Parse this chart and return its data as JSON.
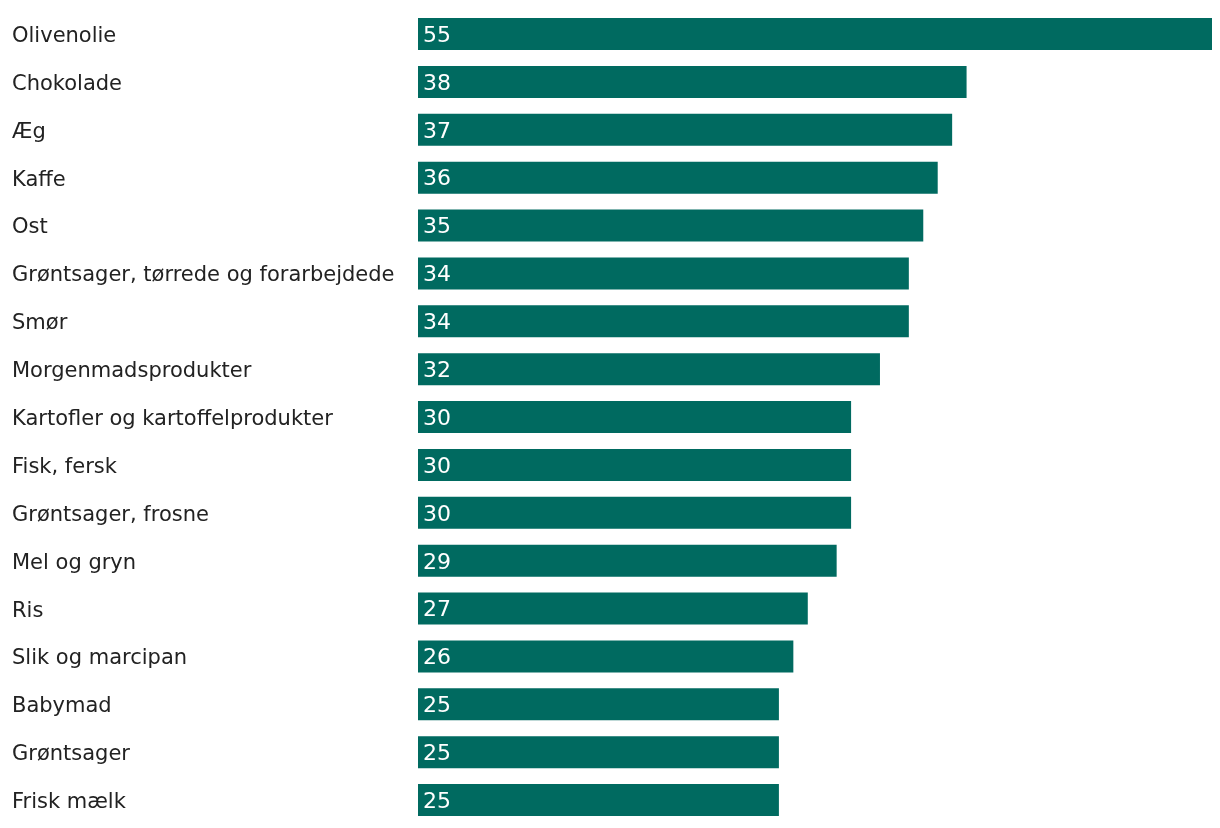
{
  "chart_data": {
    "type": "bar",
    "orientation": "horizontal",
    "categories": [
      "Olivenolie",
      "Chokolade",
      "Æg",
      "Kaffe",
      "Ost",
      "Grøntsager, tørrede og forarbejdede",
      "Smør",
      "Morgenmadsprodukter",
      "Kartofler og kartoffelprodukter",
      "Fisk, fersk",
      "Grøntsager, frosne",
      "Mel og gryn",
      "Ris",
      "Slik og marcipan",
      "Babymad",
      "Grøntsager",
      "Frisk mælk"
    ],
    "values": [
      55,
      38,
      37,
      36,
      35,
      34,
      34,
      32,
      30,
      30,
      30,
      29,
      27,
      26,
      25,
      25,
      25
    ],
    "color": "#006a60",
    "data_labels": true
  }
}
